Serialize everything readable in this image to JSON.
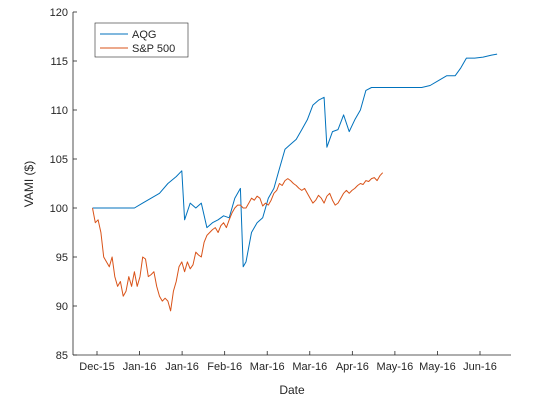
{
  "chart_data": {
    "type": "line",
    "xlabel": "Date",
    "ylabel": "VAMI ($)",
    "ylim": [
      85,
      120
    ],
    "y_ticks": [
      85,
      90,
      95,
      100,
      105,
      110,
      115,
      120
    ],
    "x_tick_labels": [
      "Dec-15",
      "Jan-16",
      "Jan-16",
      "Feb-16",
      "Mar-16",
      "Mar-16",
      "Apr-16",
      "May-16",
      "May-16",
      "Jun-16"
    ],
    "grid": false,
    "legend_placement": "top-left",
    "series": [
      {
        "name": "AQG",
        "color": "#0072BD",
        "points": [
          [
            0,
            100
          ],
          [
            3,
            100
          ],
          [
            6,
            100
          ],
          [
            9,
            100
          ],
          [
            12,
            100
          ],
          [
            15,
            100
          ],
          [
            18,
            100.5
          ],
          [
            21,
            101
          ],
          [
            24,
            101.5
          ],
          [
            27,
            102.5
          ],
          [
            30,
            103.2
          ],
          [
            32,
            103.8
          ],
          [
            33,
            98.8
          ],
          [
            35,
            100.5
          ],
          [
            37,
            100
          ],
          [
            39,
            100.5
          ],
          [
            41,
            98
          ],
          [
            43,
            98.5
          ],
          [
            45,
            98.8
          ],
          [
            47,
            99.2
          ],
          [
            49,
            99
          ],
          [
            51,
            101
          ],
          [
            53,
            102
          ],
          [
            54,
            94
          ],
          [
            55,
            94.5
          ],
          [
            57,
            97.5
          ],
          [
            59,
            98.5
          ],
          [
            61,
            99
          ],
          [
            63,
            101
          ],
          [
            65,
            102
          ],
          [
            67,
            104
          ],
          [
            69,
            106
          ],
          [
            71,
            106.5
          ],
          [
            73,
            107
          ],
          [
            75,
            108
          ],
          [
            77,
            109
          ],
          [
            79,
            110.5
          ],
          [
            81,
            111
          ],
          [
            83,
            111.3
          ],
          [
            84,
            106.2
          ],
          [
            86,
            107.8
          ],
          [
            88,
            108
          ],
          [
            90,
            109.5
          ],
          [
            92,
            107.8
          ],
          [
            94,
            109
          ],
          [
            96,
            110
          ],
          [
            98,
            112
          ],
          [
            100,
            112.3
          ],
          [
            103,
            112.3
          ],
          [
            106,
            112.3
          ],
          [
            109,
            112.3
          ],
          [
            112,
            112.3
          ],
          [
            115,
            112.3
          ],
          [
            118,
            112.3
          ],
          [
            121,
            112.5
          ],
          [
            124,
            113
          ],
          [
            127,
            113.5
          ],
          [
            130,
            113.5
          ],
          [
            132,
            114.3
          ],
          [
            134,
            115.3
          ],
          [
            137,
            115.3
          ],
          [
            140,
            115.4
          ],
          [
            143,
            115.6
          ],
          [
            145,
            115.7
          ]
        ]
      },
      {
        "name": "S&P 500",
        "color": "#D95319",
        "points": [
          [
            0,
            100
          ],
          [
            1,
            98.5
          ],
          [
            2,
            98.8
          ],
          [
            3,
            97.5
          ],
          [
            4,
            95
          ],
          [
            5,
            94.5
          ],
          [
            6,
            94
          ],
          [
            7,
            95
          ],
          [
            8,
            93
          ],
          [
            9,
            92
          ],
          [
            10,
            92.5
          ],
          [
            11,
            91
          ],
          [
            12,
            91.5
          ],
          [
            13,
            93
          ],
          [
            14,
            92
          ],
          [
            15,
            93.5
          ],
          [
            16,
            92
          ],
          [
            17,
            93
          ],
          [
            18,
            95
          ],
          [
            19,
            94.8
          ],
          [
            20,
            93
          ],
          [
            21,
            93.2
          ],
          [
            22,
            93.5
          ],
          [
            23,
            92
          ],
          [
            24,
            91
          ],
          [
            25,
            90.5
          ],
          [
            26,
            90.8
          ],
          [
            27,
            90.5
          ],
          [
            28,
            89.5
          ],
          [
            29,
            91.5
          ],
          [
            30,
            92.5
          ],
          [
            31,
            94
          ],
          [
            32,
            94.5
          ],
          [
            33,
            93.5
          ],
          [
            34,
            94.5
          ],
          [
            35,
            93.8
          ],
          [
            36,
            94.2
          ],
          [
            37,
            95.5
          ],
          [
            38,
            95.2
          ],
          [
            39,
            95
          ],
          [
            40,
            96.5
          ],
          [
            41,
            97.2
          ],
          [
            42,
            97.5
          ],
          [
            43,
            97.8
          ],
          [
            44,
            98
          ],
          [
            45,
            97.5
          ],
          [
            46,
            98.2
          ],
          [
            47,
            98.5
          ],
          [
            48,
            98
          ],
          [
            49,
            98.8
          ],
          [
            50,
            99.5
          ],
          [
            51,
            100
          ],
          [
            52,
            100.3
          ],
          [
            53,
            100.3
          ],
          [
            54,
            100
          ],
          [
            55,
            100
          ],
          [
            56,
            100.5
          ],
          [
            57,
            101
          ],
          [
            58,
            100.8
          ],
          [
            59,
            101.2
          ],
          [
            60,
            101
          ],
          [
            61,
            100.2
          ],
          [
            62,
            100.5
          ],
          [
            63,
            100.3
          ],
          [
            64,
            100.8
          ],
          [
            65,
            101.5
          ],
          [
            66,
            101.8
          ],
          [
            67,
            102.5
          ],
          [
            68,
            102.3
          ],
          [
            69,
            102.8
          ],
          [
            70,
            103
          ],
          [
            71,
            102.8
          ],
          [
            72,
            102.5
          ],
          [
            73,
            102.3
          ],
          [
            74,
            102
          ],
          [
            75,
            101.8
          ],
          [
            76,
            102
          ],
          [
            77,
            101.5
          ],
          [
            78,
            101
          ],
          [
            79,
            100.5
          ],
          [
            80,
            100.8
          ],
          [
            81,
            101.3
          ],
          [
            82,
            101
          ],
          [
            83,
            100.5
          ],
          [
            84,
            101.2
          ],
          [
            85,
            101.5
          ],
          [
            86,
            100.8
          ],
          [
            87,
            100.3
          ],
          [
            88,
            100.5
          ],
          [
            89,
            101
          ],
          [
            90,
            101.5
          ],
          [
            91,
            101.8
          ],
          [
            92,
            101.5
          ],
          [
            93,
            101.8
          ],
          [
            94,
            102
          ],
          [
            95,
            102.3
          ],
          [
            96,
            102.5
          ],
          [
            97,
            102.4
          ],
          [
            98,
            102.8
          ],
          [
            99,
            102.7
          ],
          [
            100,
            103
          ],
          [
            101,
            103.1
          ],
          [
            102,
            102.8
          ],
          [
            103,
            103.3
          ],
          [
            104,
            103.6
          ]
        ]
      }
    ]
  }
}
